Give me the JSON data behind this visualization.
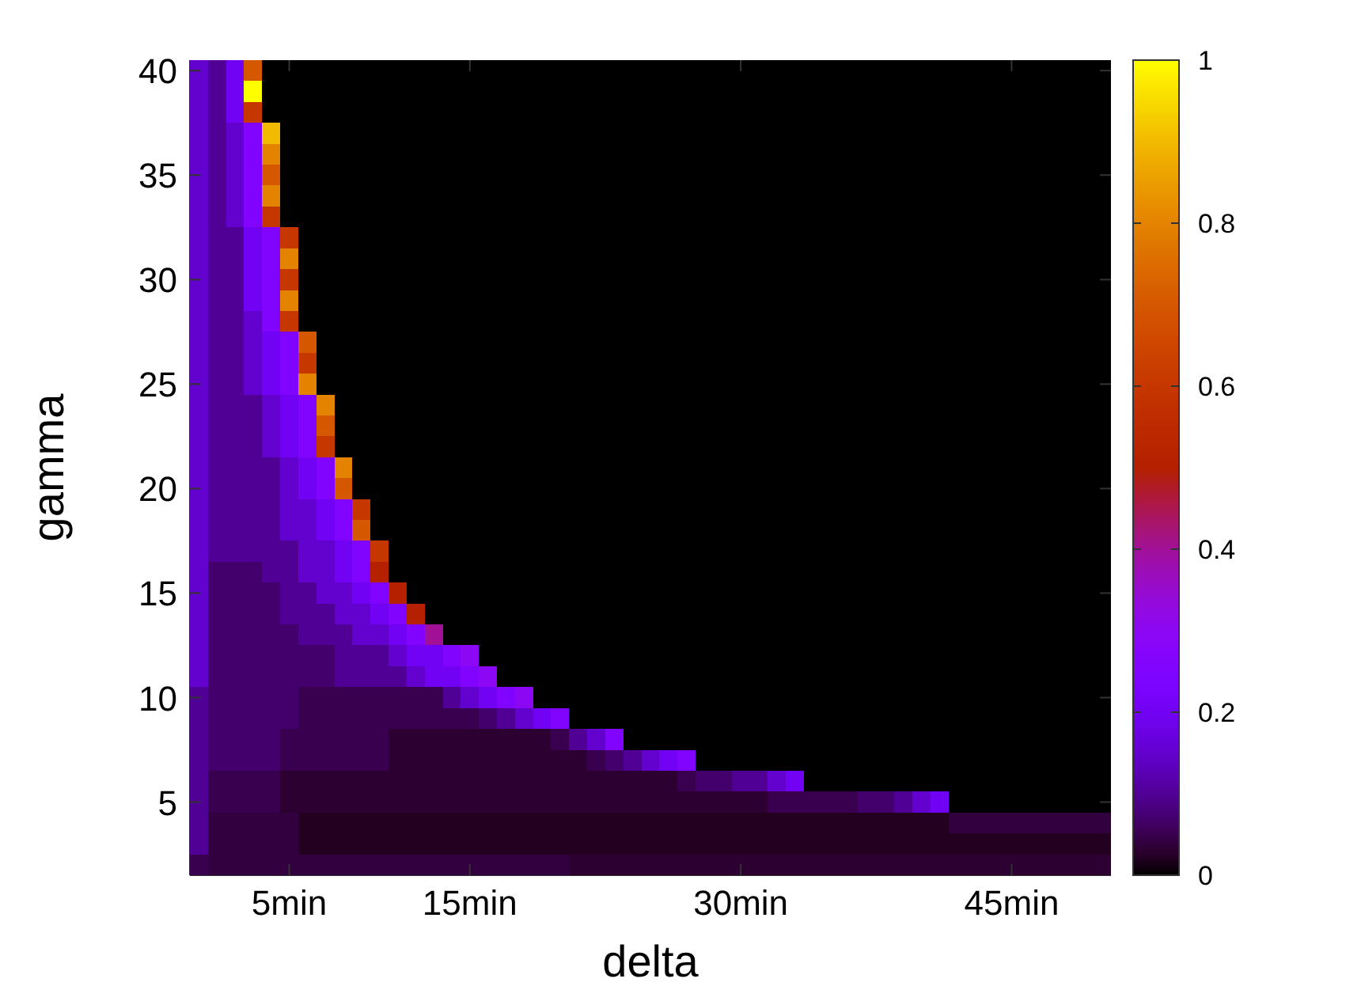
{
  "chart_data": {
    "type": "heatmap",
    "xlabel": "delta",
    "ylabel": "gamma",
    "categories": [
      null,
      null,
      null,
      null,
      null,
      "5min",
      null,
      null,
      null,
      null,
      null,
      null,
      null,
      null,
      null,
      "15min",
      null,
      null,
      null,
      null,
      null,
      null,
      null,
      null,
      null,
      null,
      null,
      null,
      null,
      null,
      "30min",
      null,
      null,
      null,
      null,
      null,
      null,
      null,
      null,
      null,
      null,
      null,
      null,
      null,
      null,
      "45min",
      null,
      null,
      null,
      null,
      null
    ],
    "y_categories": [
      "40",
      null,
      null,
      null,
      null,
      "35",
      null,
      null,
      null,
      null,
      "30",
      null,
      null,
      null,
      null,
      "25",
      null,
      null,
      null,
      null,
      "20",
      null,
      null,
      null,
      null,
      "15",
      null,
      null,
      null,
      null,
      "10",
      null,
      null,
      null,
      null,
      "5",
      null,
      null,
      null
    ],
    "clim": [
      0,
      1
    ],
    "cticks": [
      0,
      0.2,
      0.4,
      0.6,
      0.8,
      1
    ],
    "cells": [
      [
        0.15,
        0.1,
        0.2,
        0.7,
        0,
        0,
        0,
        0,
        0,
        0,
        0,
        0,
        0,
        0,
        0,
        0,
        0,
        0,
        0,
        0,
        0,
        0,
        0,
        0,
        0,
        0,
        0,
        0,
        0,
        0,
        0,
        0,
        0,
        0,
        0,
        0,
        0,
        0,
        0,
        0,
        0,
        0,
        0,
        0,
        0,
        0,
        0,
        0,
        0,
        0,
        0
      ],
      [
        0.15,
        0.1,
        0.2,
        1,
        0,
        0,
        0,
        0,
        0,
        0,
        0,
        0,
        0,
        0,
        0,
        0,
        0,
        0,
        0,
        0,
        0,
        0,
        0,
        0,
        0,
        0,
        0,
        0,
        0,
        0,
        0,
        0,
        0,
        0,
        0,
        0,
        0,
        0,
        0,
        0,
        0,
        0,
        0,
        0,
        0,
        0,
        0,
        0,
        0,
        0,
        0
      ],
      [
        0.15,
        0.1,
        0.2,
        0.6,
        0,
        0,
        0,
        0,
        0,
        0,
        0,
        0,
        0,
        0,
        0,
        0,
        0,
        0,
        0,
        0,
        0,
        0,
        0,
        0,
        0,
        0,
        0,
        0,
        0,
        0,
        0,
        0,
        0,
        0,
        0,
        0,
        0,
        0,
        0,
        0,
        0,
        0,
        0,
        0,
        0,
        0,
        0,
        0,
        0,
        0,
        0
      ],
      [
        0.15,
        0.1,
        0.15,
        0.25,
        0.9,
        0,
        0,
        0,
        0,
        0,
        0,
        0,
        0,
        0,
        0,
        0,
        0,
        0,
        0,
        0,
        0,
        0,
        0,
        0,
        0,
        0,
        0,
        0,
        0,
        0,
        0,
        0,
        0,
        0,
        0,
        0,
        0,
        0,
        0,
        0,
        0,
        0,
        0,
        0,
        0,
        0,
        0,
        0,
        0,
        0,
        0
      ],
      [
        0.15,
        0.1,
        0.15,
        0.25,
        0.8,
        0,
        0,
        0,
        0,
        0,
        0,
        0,
        0,
        0,
        0,
        0,
        0,
        0,
        0,
        0,
        0,
        0,
        0,
        0,
        0,
        0,
        0,
        0,
        0,
        0,
        0,
        0,
        0,
        0,
        0,
        0,
        0,
        0,
        0,
        0,
        0,
        0,
        0,
        0,
        0,
        0,
        0,
        0,
        0,
        0,
        0
      ],
      [
        0.15,
        0.1,
        0.15,
        0.25,
        0.7,
        0,
        0,
        0,
        0,
        0,
        0,
        0,
        0,
        0,
        0,
        0,
        0,
        0,
        0,
        0,
        0,
        0,
        0,
        0,
        0,
        0,
        0,
        0,
        0,
        0,
        0,
        0,
        0,
        0,
        0,
        0,
        0,
        0,
        0,
        0,
        0,
        0,
        0,
        0,
        0,
        0,
        0,
        0,
        0,
        0,
        0
      ],
      [
        0.15,
        0.1,
        0.15,
        0.25,
        0.8,
        0,
        0,
        0,
        0,
        0,
        0,
        0,
        0,
        0,
        0,
        0,
        0,
        0,
        0,
        0,
        0,
        0,
        0,
        0,
        0,
        0,
        0,
        0,
        0,
        0,
        0,
        0,
        0,
        0,
        0,
        0,
        0,
        0,
        0,
        0,
        0,
        0,
        0,
        0,
        0,
        0,
        0,
        0,
        0,
        0,
        0
      ],
      [
        0.15,
        0.1,
        0.15,
        0.25,
        0.6,
        0,
        0,
        0,
        0,
        0,
        0,
        0,
        0,
        0,
        0,
        0,
        0,
        0,
        0,
        0,
        0,
        0,
        0,
        0,
        0,
        0,
        0,
        0,
        0,
        0,
        0,
        0,
        0,
        0,
        0,
        0,
        0,
        0,
        0,
        0,
        0,
        0,
        0,
        0,
        0,
        0,
        0,
        0,
        0,
        0,
        0
      ],
      [
        0.15,
        0.1,
        0.1,
        0.2,
        0.25,
        0.6,
        0,
        0,
        0,
        0,
        0,
        0,
        0,
        0,
        0,
        0,
        0,
        0,
        0,
        0,
        0,
        0,
        0,
        0,
        0,
        0,
        0,
        0,
        0,
        0,
        0,
        0,
        0,
        0,
        0,
        0,
        0,
        0,
        0,
        0,
        0,
        0,
        0,
        0,
        0,
        0,
        0,
        0,
        0,
        0,
        0
      ],
      [
        0.15,
        0.1,
        0.1,
        0.2,
        0.25,
        0.8,
        0,
        0,
        0,
        0,
        0,
        0,
        0,
        0,
        0,
        0,
        0,
        0,
        0,
        0,
        0,
        0,
        0,
        0,
        0,
        0,
        0,
        0,
        0,
        0,
        0,
        0,
        0,
        0,
        0,
        0,
        0,
        0,
        0,
        0,
        0,
        0,
        0,
        0,
        0,
        0,
        0,
        0,
        0,
        0,
        0
      ],
      [
        0.15,
        0.1,
        0.1,
        0.2,
        0.25,
        0.6,
        0,
        0,
        0,
        0,
        0,
        0,
        0,
        0,
        0,
        0,
        0,
        0,
        0,
        0,
        0,
        0,
        0,
        0,
        0,
        0,
        0,
        0,
        0,
        0,
        0,
        0,
        0,
        0,
        0,
        0,
        0,
        0,
        0,
        0,
        0,
        0,
        0,
        0,
        0,
        0,
        0,
        0,
        0,
        0,
        0
      ],
      [
        0.15,
        0.1,
        0.1,
        0.2,
        0.25,
        0.8,
        0,
        0,
        0,
        0,
        0,
        0,
        0,
        0,
        0,
        0,
        0,
        0,
        0,
        0,
        0,
        0,
        0,
        0,
        0,
        0,
        0,
        0,
        0,
        0,
        0,
        0,
        0,
        0,
        0,
        0,
        0,
        0,
        0,
        0,
        0,
        0,
        0,
        0,
        0,
        0,
        0,
        0,
        0,
        0,
        0
      ],
      [
        0.15,
        0.1,
        0.1,
        0.15,
        0.25,
        0.6,
        0,
        0,
        0,
        0,
        0,
        0,
        0,
        0,
        0,
        0,
        0,
        0,
        0,
        0,
        0,
        0,
        0,
        0,
        0,
        0,
        0,
        0,
        0,
        0,
        0,
        0,
        0,
        0,
        0,
        0,
        0,
        0,
        0,
        0,
        0,
        0,
        0,
        0,
        0,
        0,
        0,
        0,
        0,
        0,
        0
      ],
      [
        0.15,
        0.1,
        0.1,
        0.15,
        0.2,
        0.25,
        0.7,
        0,
        0,
        0,
        0,
        0,
        0,
        0,
        0,
        0,
        0,
        0,
        0,
        0,
        0,
        0,
        0,
        0,
        0,
        0,
        0,
        0,
        0,
        0,
        0,
        0,
        0,
        0,
        0,
        0,
        0,
        0,
        0,
        0,
        0,
        0,
        0,
        0,
        0,
        0,
        0,
        0,
        0,
        0,
        0
      ],
      [
        0.15,
        0.1,
        0.1,
        0.15,
        0.2,
        0.25,
        0.6,
        0,
        0,
        0,
        0,
        0,
        0,
        0,
        0,
        0,
        0,
        0,
        0,
        0,
        0,
        0,
        0,
        0,
        0,
        0,
        0,
        0,
        0,
        0,
        0,
        0,
        0,
        0,
        0,
        0,
        0,
        0,
        0,
        0,
        0,
        0,
        0,
        0,
        0,
        0,
        0,
        0,
        0,
        0,
        0
      ],
      [
        0.15,
        0.1,
        0.1,
        0.15,
        0.2,
        0.25,
        0.8,
        0,
        0,
        0,
        0,
        0,
        0,
        0,
        0,
        0,
        0,
        0,
        0,
        0,
        0,
        0,
        0,
        0,
        0,
        0,
        0,
        0,
        0,
        0,
        0,
        0,
        0,
        0,
        0,
        0,
        0,
        0,
        0,
        0,
        0,
        0,
        0,
        0,
        0,
        0,
        0,
        0,
        0,
        0,
        0
      ],
      [
        0.15,
        0.1,
        0.1,
        0.1,
        0.15,
        0.2,
        0.25,
        0.8,
        0,
        0,
        0,
        0,
        0,
        0,
        0,
        0,
        0,
        0,
        0,
        0,
        0,
        0,
        0,
        0,
        0,
        0,
        0,
        0,
        0,
        0,
        0,
        0,
        0,
        0,
        0,
        0,
        0,
        0,
        0,
        0,
        0,
        0,
        0,
        0,
        0,
        0,
        0,
        0,
        0,
        0,
        0
      ],
      [
        0.15,
        0.1,
        0.1,
        0.1,
        0.15,
        0.2,
        0.25,
        0.7,
        0,
        0,
        0,
        0,
        0,
        0,
        0,
        0,
        0,
        0,
        0,
        0,
        0,
        0,
        0,
        0,
        0,
        0,
        0,
        0,
        0,
        0,
        0,
        0,
        0,
        0,
        0,
        0,
        0,
        0,
        0,
        0,
        0,
        0,
        0,
        0,
        0,
        0,
        0,
        0,
        0,
        0,
        0
      ],
      [
        0.15,
        0.1,
        0.1,
        0.1,
        0.15,
        0.2,
        0.25,
        0.6,
        0,
        0,
        0,
        0,
        0,
        0,
        0,
        0,
        0,
        0,
        0,
        0,
        0,
        0,
        0,
        0,
        0,
        0,
        0,
        0,
        0,
        0,
        0,
        0,
        0,
        0,
        0,
        0,
        0,
        0,
        0,
        0,
        0,
        0,
        0,
        0,
        0,
        0,
        0,
        0,
        0,
        0,
        0
      ],
      [
        0.15,
        0.1,
        0.1,
        0.1,
        0.1,
        0.15,
        0.2,
        0.25,
        0.8,
        0,
        0,
        0,
        0,
        0,
        0,
        0,
        0,
        0,
        0,
        0,
        0,
        0,
        0,
        0,
        0,
        0,
        0,
        0,
        0,
        0,
        0,
        0,
        0,
        0,
        0,
        0,
        0,
        0,
        0,
        0,
        0,
        0,
        0,
        0,
        0,
        0,
        0,
        0,
        0,
        0,
        0
      ],
      [
        0.15,
        0.1,
        0.1,
        0.1,
        0.1,
        0.15,
        0.2,
        0.25,
        0.7,
        0,
        0,
        0,
        0,
        0,
        0,
        0,
        0,
        0,
        0,
        0,
        0,
        0,
        0,
        0,
        0,
        0,
        0,
        0,
        0,
        0,
        0,
        0,
        0,
        0,
        0,
        0,
        0,
        0,
        0,
        0,
        0,
        0,
        0,
        0,
        0,
        0,
        0,
        0,
        0,
        0,
        0
      ],
      [
        0.15,
        0.1,
        0.1,
        0.1,
        0.1,
        0.15,
        0.15,
        0.2,
        0.25,
        0.6,
        0,
        0,
        0,
        0,
        0,
        0,
        0,
        0,
        0,
        0,
        0,
        0,
        0,
        0,
        0,
        0,
        0,
        0,
        0,
        0,
        0,
        0,
        0,
        0,
        0,
        0,
        0,
        0,
        0,
        0,
        0,
        0,
        0,
        0,
        0,
        0,
        0,
        0,
        0,
        0,
        0
      ],
      [
        0.15,
        0.1,
        0.1,
        0.1,
        0.1,
        0.15,
        0.15,
        0.2,
        0.25,
        0.7,
        0,
        0,
        0,
        0,
        0,
        0,
        0,
        0,
        0,
        0,
        0,
        0,
        0,
        0,
        0,
        0,
        0,
        0,
        0,
        0,
        0,
        0,
        0,
        0,
        0,
        0,
        0,
        0,
        0,
        0,
        0,
        0,
        0,
        0,
        0,
        0,
        0,
        0,
        0,
        0,
        0
      ],
      [
        0.15,
        0.1,
        0.1,
        0.1,
        0.1,
        0.1,
        0.15,
        0.15,
        0.2,
        0.25,
        0.6,
        0,
        0,
        0,
        0,
        0,
        0,
        0,
        0,
        0,
        0,
        0,
        0,
        0,
        0,
        0,
        0,
        0,
        0,
        0,
        0,
        0,
        0,
        0,
        0,
        0,
        0,
        0,
        0,
        0,
        0,
        0,
        0,
        0,
        0,
        0,
        0,
        0,
        0,
        0,
        0
      ],
      [
        0.15,
        0.07,
        0.07,
        0.07,
        0.1,
        0.1,
        0.15,
        0.15,
        0.2,
        0.25,
        0.5,
        0,
        0,
        0,
        0,
        0,
        0,
        0,
        0,
        0,
        0,
        0,
        0,
        0,
        0,
        0,
        0,
        0,
        0,
        0,
        0,
        0,
        0,
        0,
        0,
        0,
        0,
        0,
        0,
        0,
        0,
        0,
        0,
        0,
        0,
        0,
        0,
        0,
        0,
        0,
        0
      ],
      [
        0.15,
        0.07,
        0.07,
        0.07,
        0.07,
        0.1,
        0.1,
        0.15,
        0.15,
        0.2,
        0.25,
        0.5,
        0,
        0,
        0,
        0,
        0,
        0,
        0,
        0,
        0,
        0,
        0,
        0,
        0,
        0,
        0,
        0,
        0,
        0,
        0,
        0,
        0,
        0,
        0,
        0,
        0,
        0,
        0,
        0,
        0,
        0,
        0,
        0,
        0,
        0,
        0,
        0,
        0,
        0,
        0
      ],
      [
        0.15,
        0.07,
        0.07,
        0.07,
        0.07,
        0.1,
        0.1,
        0.1,
        0.15,
        0.15,
        0.2,
        0.25,
        0.5,
        0,
        0,
        0,
        0,
        0,
        0,
        0,
        0,
        0,
        0,
        0,
        0,
        0,
        0,
        0,
        0,
        0,
        0,
        0,
        0,
        0,
        0,
        0,
        0,
        0,
        0,
        0,
        0,
        0,
        0,
        0,
        0,
        0,
        0,
        0,
        0,
        0,
        0
      ],
      [
        0.15,
        0.07,
        0.07,
        0.07,
        0.07,
        0.07,
        0.1,
        0.1,
        0.1,
        0.15,
        0.15,
        0.2,
        0.25,
        0.4,
        0,
        0,
        0,
        0,
        0,
        0,
        0,
        0,
        0,
        0,
        0,
        0,
        0,
        0,
        0,
        0,
        0,
        0,
        0,
        0,
        0,
        0,
        0,
        0,
        0,
        0,
        0,
        0,
        0,
        0,
        0,
        0,
        0,
        0,
        0,
        0,
        0
      ],
      [
        0.15,
        0.07,
        0.07,
        0.07,
        0.07,
        0.07,
        0.07,
        0.07,
        0.1,
        0.1,
        0.1,
        0.15,
        0.2,
        0.2,
        0.25,
        0.3,
        0,
        0,
        0,
        0,
        0,
        0,
        0,
        0,
        0,
        0,
        0,
        0,
        0,
        0,
        0,
        0,
        0,
        0,
        0,
        0,
        0,
        0,
        0,
        0,
        0,
        0,
        0,
        0,
        0,
        0,
        0,
        0,
        0,
        0,
        0
      ],
      [
        0.15,
        0.07,
        0.07,
        0.07,
        0.07,
        0.07,
        0.07,
        0.07,
        0.1,
        0.1,
        0.1,
        0.1,
        0.15,
        0.2,
        0.2,
        0.25,
        0.3,
        0,
        0,
        0,
        0,
        0,
        0,
        0,
        0,
        0,
        0,
        0,
        0,
        0,
        0,
        0,
        0,
        0,
        0,
        0,
        0,
        0,
        0,
        0,
        0,
        0,
        0,
        0,
        0,
        0,
        0,
        0,
        0,
        0,
        0
      ],
      [
        0.1,
        0.07,
        0.07,
        0.07,
        0.07,
        0.07,
        0.05,
        0.05,
        0.05,
        0.05,
        0.05,
        0.05,
        0.05,
        0.05,
        0.1,
        0.15,
        0.2,
        0.25,
        0.3,
        0,
        0,
        0,
        0,
        0,
        0,
        0,
        0,
        0,
        0,
        0,
        0,
        0,
        0,
        0,
        0,
        0,
        0,
        0,
        0,
        0,
        0,
        0,
        0,
        0,
        0,
        0,
        0,
        0,
        0,
        0,
        0
      ],
      [
        0.1,
        0.07,
        0.07,
        0.07,
        0.07,
        0.07,
        0.05,
        0.05,
        0.05,
        0.05,
        0.05,
        0.05,
        0.05,
        0.05,
        0.05,
        0.05,
        0.07,
        0.1,
        0.15,
        0.2,
        0.25,
        0,
        0,
        0,
        0,
        0,
        0,
        0,
        0,
        0,
        0,
        0,
        0,
        0,
        0,
        0,
        0,
        0,
        0,
        0,
        0,
        0,
        0,
        0,
        0,
        0,
        0,
        0,
        0,
        0,
        0
      ],
      [
        0.1,
        0.07,
        0.07,
        0.07,
        0.07,
        0.05,
        0.05,
        0.05,
        0.05,
        0.05,
        0.05,
        0.03,
        0.03,
        0.03,
        0.03,
        0.03,
        0.03,
        0.03,
        0.03,
        0.03,
        0.05,
        0.1,
        0.15,
        0.25,
        0,
        0,
        0,
        0,
        0,
        0,
        0,
        0,
        0,
        0,
        0,
        0,
        0,
        0,
        0,
        0,
        0,
        0,
        0,
        0,
        0,
        0,
        0,
        0,
        0,
        0,
        0
      ],
      [
        0.1,
        0.07,
        0.07,
        0.07,
        0.07,
        0.05,
        0.05,
        0.05,
        0.05,
        0.05,
        0.05,
        0.03,
        0.03,
        0.03,
        0.03,
        0.03,
        0.03,
        0.03,
        0.03,
        0.03,
        0.03,
        0.03,
        0.05,
        0.07,
        0.1,
        0.15,
        0.2,
        0.25,
        0,
        0,
        0,
        0,
        0,
        0,
        0,
        0,
        0,
        0,
        0,
        0,
        0,
        0,
        0,
        0,
        0,
        0,
        0,
        0,
        0,
        0,
        0
      ],
      [
        0.1,
        0.05,
        0.05,
        0.05,
        0.05,
        0.03,
        0.03,
        0.03,
        0.03,
        0.03,
        0.03,
        0.03,
        0.03,
        0.03,
        0.03,
        0.03,
        0.03,
        0.03,
        0.03,
        0.03,
        0.03,
        0.03,
        0.03,
        0.03,
        0.03,
        0.03,
        0.03,
        0.05,
        0.07,
        0.07,
        0.1,
        0.1,
        0.15,
        0.2,
        0,
        0,
        0,
        0,
        0,
        0,
        0,
        0,
        0,
        0,
        0,
        0,
        0,
        0,
        0,
        0,
        0
      ],
      [
        0.1,
        0.05,
        0.05,
        0.05,
        0.05,
        0.03,
        0.03,
        0.03,
        0.03,
        0.03,
        0.03,
        0.03,
        0.03,
        0.03,
        0.03,
        0.03,
        0.03,
        0.03,
        0.03,
        0.03,
        0.03,
        0.03,
        0.03,
        0.03,
        0.03,
        0.03,
        0.03,
        0.03,
        0.03,
        0.03,
        0.03,
        0.03,
        0.05,
        0.05,
        0.05,
        0.05,
        0.05,
        0.07,
        0.07,
        0.1,
        0.15,
        0.2,
        0,
        0,
        0,
        0,
        0,
        0,
        0,
        0,
        0
      ],
      [
        0.1,
        0.04,
        0.04,
        0.04,
        0.04,
        0.04,
        0.02,
        0.02,
        0.02,
        0.02,
        0.02,
        0.02,
        0.02,
        0.02,
        0.02,
        0.02,
        0.02,
        0.02,
        0.02,
        0.02,
        0.02,
        0.02,
        0.02,
        0.02,
        0.02,
        0.02,
        0.02,
        0.02,
        0.02,
        0.02,
        0.02,
        0.02,
        0.02,
        0.02,
        0.02,
        0.02,
        0.02,
        0.02,
        0.02,
        0.02,
        0.02,
        0.02,
        0.04,
        0.04,
        0.04,
        0.04,
        0.04,
        0.04,
        0.04,
        0.04,
        0.04
      ],
      [
        0.1,
        0.04,
        0.04,
        0.04,
        0.04,
        0.04,
        0.02,
        0.02,
        0.02,
        0.02,
        0.02,
        0.02,
        0.02,
        0.02,
        0.02,
        0.02,
        0.02,
        0.02,
        0.02,
        0.02,
        0.02,
        0.02,
        0.02,
        0.02,
        0.02,
        0.02,
        0.02,
        0.02,
        0.02,
        0.02,
        0.02,
        0.02,
        0.02,
        0.02,
        0.02,
        0.02,
        0.02,
        0.02,
        0.02,
        0.02,
        0.02,
        0.02,
        0.02,
        0.02,
        0.02,
        0.02,
        0.02,
        0.02,
        0.02,
        0.02,
        0.02
      ],
      [
        0.05,
        0.04,
        0.04,
        0.04,
        0.04,
        0.04,
        0.04,
        0.04,
        0.04,
        0.04,
        0.04,
        0.04,
        0.04,
        0.04,
        0.04,
        0.04,
        0.04,
        0.04,
        0.04,
        0.04,
        0.04,
        0.03,
        0.03,
        0.03,
        0.03,
        0.03,
        0.03,
        0.03,
        0.03,
        0.03,
        0.03,
        0.03,
        0.03,
        0.03,
        0.03,
        0.03,
        0.03,
        0.03,
        0.03,
        0.03,
        0.03,
        0.03,
        0.03,
        0.03,
        0.03,
        0.03,
        0.03,
        0.03,
        0.03,
        0.03,
        0.03
      ]
    ]
  }
}
